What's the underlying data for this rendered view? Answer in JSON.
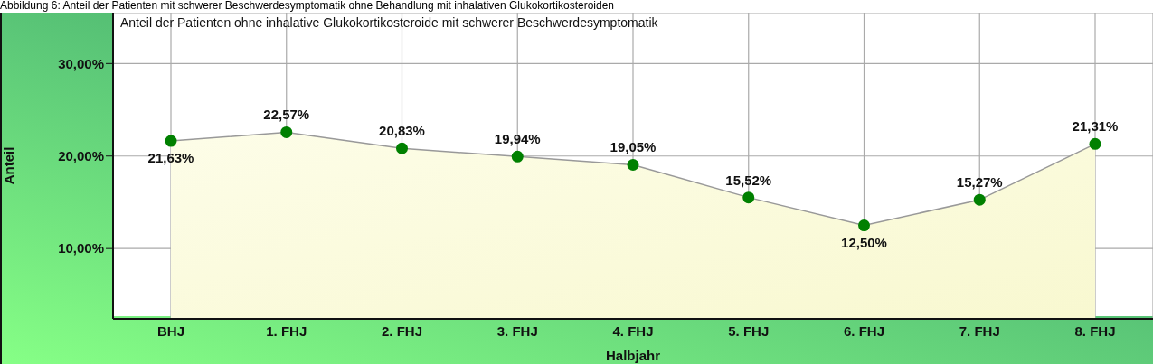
{
  "chart_data": {
    "type": "area",
    "title": "Anteil der Patienten ohne inhalative Glukokortikosteroide mit schwerer Beschwerdesymptomatik",
    "annotations": [
      "Abbildung 6: Anteil der Patienten mit schwerer Beschwerdesymptomatik ohne Behandlung mit inhalativen Glukokortikosteroiden"
    ],
    "xlabel": "Halbjahr",
    "ylabel": "Anteil",
    "categories": [
      "BHJ",
      "1. FHJ",
      "2. FHJ",
      "3. FHJ",
      "4. FHJ",
      "5. FHJ",
      "6. FHJ",
      "7. FHJ",
      "8. FHJ"
    ],
    "series": [
      {
        "color": "#008000",
        "values": [
          21.63,
          22.57,
          20.83,
          19.94,
          19.05,
          15.52,
          12.5,
          15.27,
          21.31
        ]
      }
    ],
    "value_labels": [
      "21,63%",
      "22,57%",
      "20,83%",
      "19,94%",
      "19,05%",
      "15,52%",
      "12,50%",
      "15,27%",
      "21,31%"
    ],
    "ylim": [
      2.4,
      35.5
    ],
    "yticks": [
      {
        "value": 10,
        "label": "10,00%"
      },
      {
        "value": 20,
        "label": "20,00%"
      },
      {
        "value": 30,
        "label": "30,00%"
      }
    ],
    "grid": true,
    "marker": "circle"
  }
}
